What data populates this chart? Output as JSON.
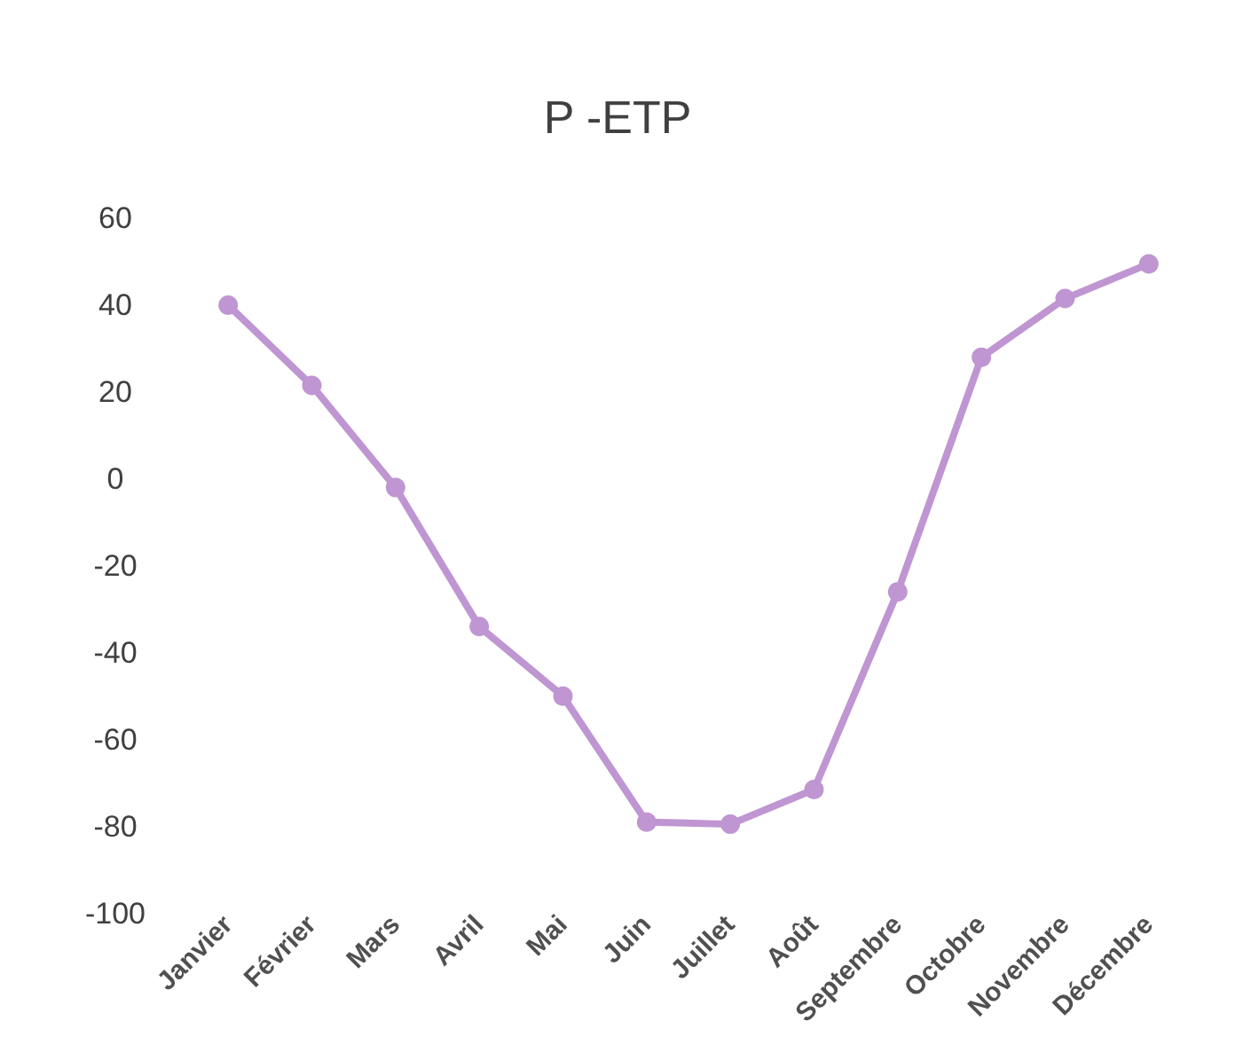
{
  "chart_data": {
    "type": "line",
    "title": "P -ETP",
    "categories": [
      "Janvier",
      "Février",
      "Mars",
      "Avril",
      "Mai",
      "Juin",
      "Juillet",
      "Août",
      "Septembre",
      "Octobre",
      "Novembre",
      "Décembre"
    ],
    "series": [
      {
        "color": "#bf95d2",
        "values": [
          40,
          21.5,
          -2,
          -34,
          -50,
          -79,
          -79.5,
          -71.5,
          -26,
          28,
          41.5,
          49.5
        ]
      }
    ],
    "ylim": [
      -100,
      60
    ],
    "yticks": [
      -100,
      -80,
      -60,
      -40,
      -20,
      0,
      20,
      40,
      60
    ],
    "grid": false,
    "marker": "circle",
    "line_style": "solid"
  }
}
